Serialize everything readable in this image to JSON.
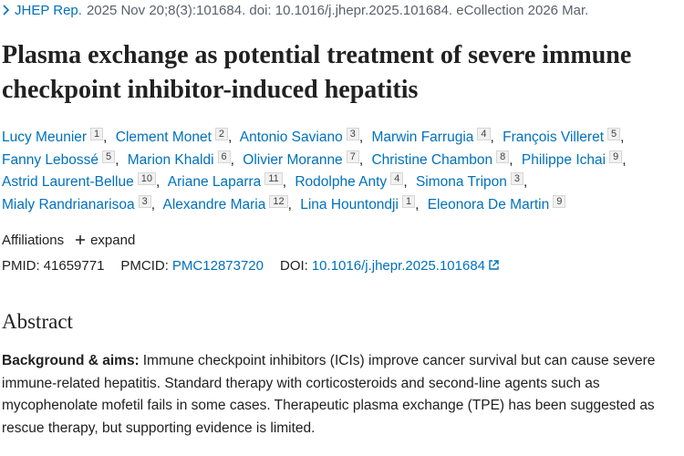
{
  "citation": {
    "journal": "JHEP Rep.",
    "details": "2025 Nov 20;8(3):101684. doi: 10.1016/j.jhepr.2025.101684. eCollection 2026 Mar."
  },
  "title": "Plasma exchange as potential treatment of severe immune checkpoint inhibitor-induced hepatitis",
  "authors": [
    {
      "name": "Lucy Meunier",
      "aff": 1,
      "sep": ","
    },
    {
      "name": "Clement Monet",
      "aff": 2,
      "sep": ","
    },
    {
      "name": "Antonio Saviano",
      "aff": 3,
      "sep": ","
    },
    {
      "name": "Marwin Farrugia",
      "aff": 4,
      "sep": ","
    },
    {
      "name": "François Villeret",
      "aff": 5,
      "sep": ","
    },
    {
      "name": "Fanny Lebossé",
      "aff": 5,
      "sep": ","
    },
    {
      "name": "Marion Khaldi",
      "aff": 6,
      "sep": ","
    },
    {
      "name": "Olivier Moranne",
      "aff": 7,
      "sep": ","
    },
    {
      "name": "Christine Chambon",
      "aff": 8,
      "sep": ","
    },
    {
      "name": "Philippe Ichai",
      "aff": 9,
      "sep": ","
    },
    {
      "name": "Astrid Laurent-Bellue",
      "aff": 10,
      "sep": ","
    },
    {
      "name": "Ariane Laparra",
      "aff": 11,
      "sep": ","
    },
    {
      "name": "Rodolphe Anty",
      "aff": 4,
      "sep": ","
    },
    {
      "name": "Simona Tripon",
      "aff": 3,
      "sep": ","
    },
    {
      "name": "Mialy Randrianarisoa",
      "aff": 3,
      "sep": ","
    },
    {
      "name": "Alexandre Maria",
      "aff": 12,
      "sep": ","
    },
    {
      "name": "Lina Hountondji",
      "aff": 1,
      "sep": ","
    },
    {
      "name": "Eleonora De Martin",
      "aff": 9
    }
  ],
  "affiliations": {
    "label": "Affiliations",
    "toggle": "expand"
  },
  "identifiers": {
    "pmid_label": "PMID:",
    "pmid": "41659771",
    "pmcid_label": "PMCID:",
    "pmcid": "PMC12873720",
    "doi_label": "DOI:",
    "doi": "10.1016/j.jhepr.2025.101684"
  },
  "abstract": {
    "heading": "Abstract",
    "label": "Background & aims:",
    "text": "Immune checkpoint inhibitors (ICIs) improve cancer survival but can cause severe immune-related hepatitis. Standard therapy with corticosteroids and second-line agents such as mycophenolate mofetil fails in some cases. Therapeutic plasma exchange (TPE) has been suggested as rescue therapy, but supporting evidence is limited."
  }
}
